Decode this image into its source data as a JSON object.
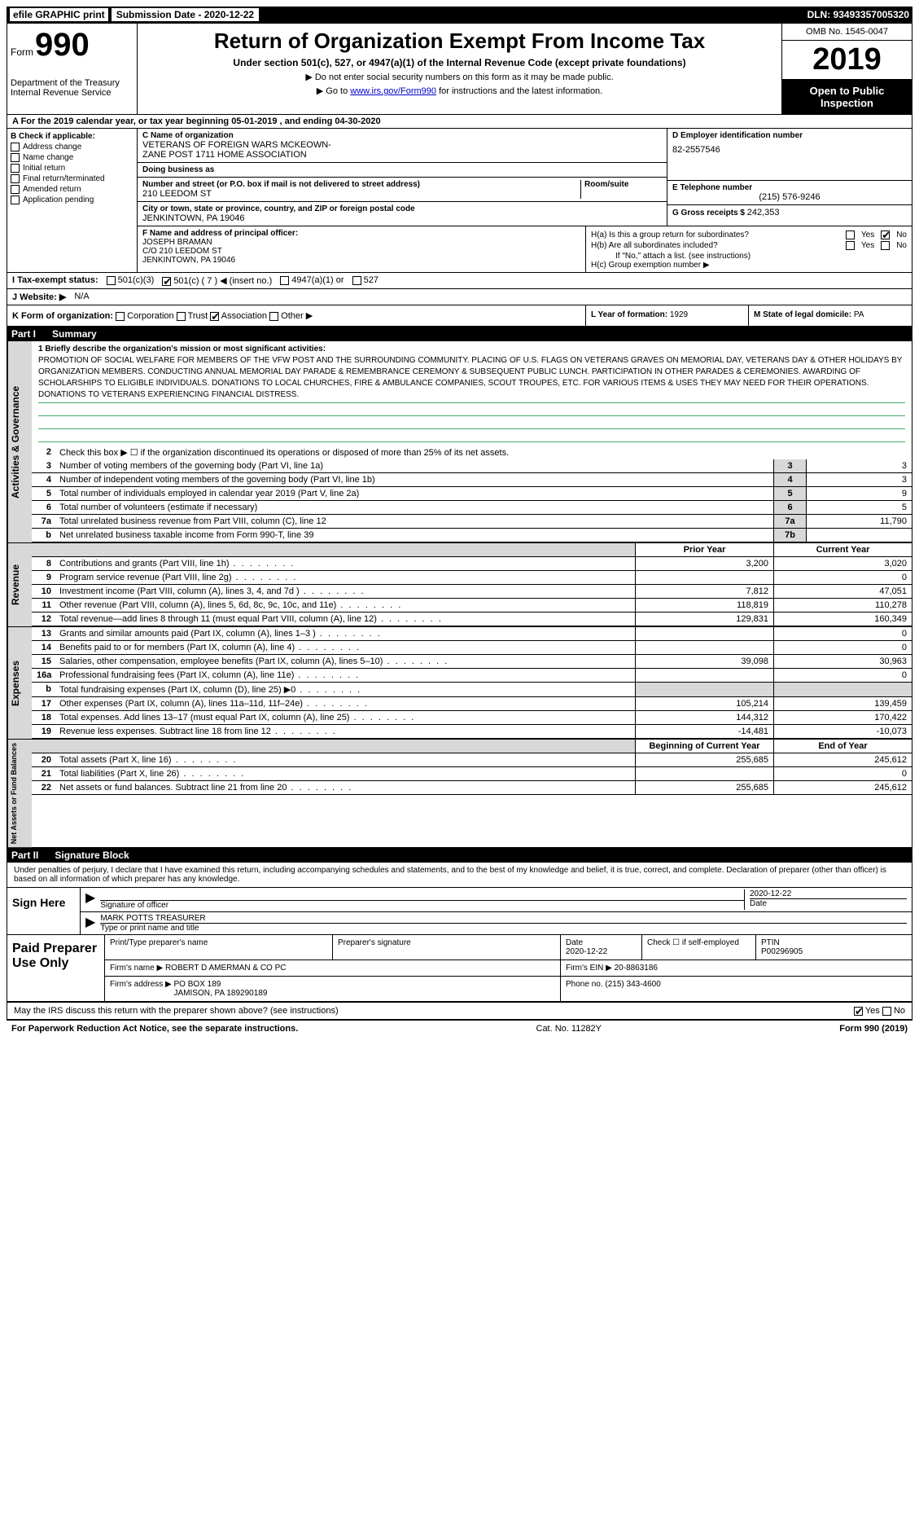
{
  "top": {
    "efile": "efile GRAPHIC print",
    "sub_label": "Submission Date - 2020-12-22",
    "dln": "DLN: 93493357005320"
  },
  "header": {
    "form_word": "Form",
    "form_num": "990",
    "dept": "Department of the Treasury\nInternal Revenue Service",
    "title": "Return of Organization Exempt From Income Tax",
    "sub1": "Under section 501(c), 527, or 4947(a)(1) of the Internal Revenue Code (except private foundations)",
    "sub2": "▶ Do not enter social security numbers on this form as it may be made public.",
    "sub3_pre": "▶ Go to ",
    "sub3_link": "www.irs.gov/Form990",
    "sub3_post": " for instructions and the latest information.",
    "omb": "OMB No. 1545-0047",
    "year": "2019",
    "open": "Open to Public Inspection"
  },
  "row_a": "A   For the 2019 calendar year, or tax year beginning 05-01-2019   , and ending 04-30-2020",
  "box_b": {
    "hd": "B Check if applicable:",
    "items": [
      "Address change",
      "Name change",
      "Initial return",
      "Final return/terminated",
      "Amended return",
      "Application pending"
    ]
  },
  "box_c": {
    "name_label": "C Name of organization",
    "name": "VETERANS OF FOREIGN WARS MCKEOWN-\nZANE POST 1711 HOME ASSOCIATION",
    "dba_label": "Doing business as",
    "dba": "",
    "street_label": "Number and street (or P.O. box if mail is not delivered to street address)",
    "street": "210 LEEDOM ST",
    "room_label": "Room/suite",
    "city_label": "City or town, state or province, country, and ZIP or foreign postal code",
    "city": "JENKINTOWN, PA  19046"
  },
  "box_d": {
    "label": "D Employer identification number",
    "ein": "82-2557546",
    "e_label": "E Telephone number",
    "phone": "(215) 576-9246",
    "g_label": "G Gross receipts $",
    "gross": "242,353"
  },
  "box_f": {
    "label": "F  Name and address of principal officer:",
    "name": "JOSEPH BRAMAN",
    "line2": "C/O 210 LEEDOM ST",
    "line3": "JENKINTOWN, PA  19046"
  },
  "box_h": {
    "ha": "H(a)  Is this a group return for subordinates?",
    "hb": "H(b)  Are all subordinates included?",
    "hb_note": "If \"No,\" attach a list. (see instructions)",
    "hc": "H(c)  Group exemption number ▶",
    "yes": "Yes",
    "no": "No"
  },
  "row_i": {
    "label": "I    Tax-exempt status:",
    "opt1": "501(c)(3)",
    "opt2": "501(c) ( 7 ) ◀ (insert no.)",
    "opt3": "4947(a)(1) or",
    "opt4": "527"
  },
  "row_j": {
    "label": "J   Website: ▶",
    "val": "N/A"
  },
  "row_k": {
    "label": "K Form of organization:",
    "opts": [
      "Corporation",
      "Trust",
      "Association",
      "Other ▶"
    ],
    "checked": 2
  },
  "row_l": {
    "label": "L Year of formation:",
    "val": "1929"
  },
  "row_m": {
    "label": "M State of legal domicile:",
    "val": "PA"
  },
  "part1": {
    "hd": "Part I",
    "title": "Summary",
    "side1": "Activities & Governance",
    "q1_label": "1   Briefly describe the organization's mission or most significant activities:",
    "mission": "PROMOTION OF SOCIAL WELFARE FOR MEMBERS OF THE VFW POST AND THE SURROUNDING COMMUNITY. PLACING OF U.S. FLAGS ON VETERANS GRAVES ON MEMORIAL DAY, VETERANS DAY & OTHER HOLIDAYS BY ORGANIZATION MEMBERS. CONDUCTING ANNUAL MEMORIAL DAY PARADE & REMEMBRANCE CEREMONY & SUBSEQUENT PUBLIC LUNCH. PARTICIPATION IN OTHER PARADES & CEREMONIES. AWARDING OF SCHOLARSHIPS TO ELIGIBLE INDIVIDUALS. DONATIONS TO LOCAL CHURCHES, FIRE & AMBULANCE COMPANIES, SCOUT TROUPES, ETC. FOR VARIOUS ITEMS & USES THEY MAY NEED FOR THEIR OPERATIONS. DONATIONS TO VETERANS EXPERIENCING FINANCIAL DISTRESS.",
    "q2": "Check this box ▶ ☐  if the organization discontinued its operations or disposed of more than 25% of its net assets.",
    "rows": [
      {
        "n": "3",
        "t": "Number of voting members of the governing body (Part VI, line 1a)",
        "b": "3",
        "v": "3"
      },
      {
        "n": "4",
        "t": "Number of independent voting members of the governing body (Part VI, line 1b)",
        "b": "4",
        "v": "3"
      },
      {
        "n": "5",
        "t": "Total number of individuals employed in calendar year 2019 (Part V, line 2a)",
        "b": "5",
        "v": "9"
      },
      {
        "n": "6",
        "t": "Total number of volunteers (estimate if necessary)",
        "b": "6",
        "v": "5"
      },
      {
        "n": "7a",
        "t": "Total unrelated business revenue from Part VIII, column (C), line 12",
        "b": "7a",
        "v": "11,790"
      },
      {
        "n": "b",
        "t": "Net unrelated business taxable income from Form 990-T, line 39",
        "b": "7b",
        "v": ""
      }
    ],
    "side2": "Revenue",
    "side3": "Expenses",
    "side4": "Net Assets or Fund Balances",
    "py": "Prior Year",
    "cy": "Current Year",
    "by": "Beginning of Current Year",
    "ey": "End of Year",
    "rev_rows": [
      {
        "n": "8",
        "t": "Contributions and grants (Part VIII, line 1h)",
        "py": "3,200",
        "cy": "3,020"
      },
      {
        "n": "9",
        "t": "Program service revenue (Part VIII, line 2g)",
        "py": "",
        "cy": "0"
      },
      {
        "n": "10",
        "t": "Investment income (Part VIII, column (A), lines 3, 4, and 7d )",
        "py": "7,812",
        "cy": "47,051"
      },
      {
        "n": "11",
        "t": "Other revenue (Part VIII, column (A), lines 5, 6d, 8c, 9c, 10c, and 11e)",
        "py": "118,819",
        "cy": "110,278"
      },
      {
        "n": "12",
        "t": "Total revenue—add lines 8 through 11 (must equal Part VIII, column (A), line 12)",
        "py": "129,831",
        "cy": "160,349"
      }
    ],
    "exp_rows": [
      {
        "n": "13",
        "t": "Grants and similar amounts paid (Part IX, column (A), lines 1–3 )",
        "py": "",
        "cy": "0"
      },
      {
        "n": "14",
        "t": "Benefits paid to or for members (Part IX, column (A), line 4)",
        "py": "",
        "cy": "0"
      },
      {
        "n": "15",
        "t": "Salaries, other compensation, employee benefits (Part IX, column (A), lines 5–10)",
        "py": "39,098",
        "cy": "30,963"
      },
      {
        "n": "16a",
        "t": "Professional fundraising fees (Part IX, column (A), line 11e)",
        "py": "",
        "cy": "0"
      },
      {
        "n": "b",
        "t": "Total fundraising expenses (Part IX, column (D), line 25) ▶0",
        "py": "shade",
        "cy": "shade"
      },
      {
        "n": "17",
        "t": "Other expenses (Part IX, column (A), lines 11a–11d, 11f–24e)",
        "py": "105,214",
        "cy": "139,459"
      },
      {
        "n": "18",
        "t": "Total expenses. Add lines 13–17 (must equal Part IX, column (A), line 25)",
        "py": "144,312",
        "cy": "170,422"
      },
      {
        "n": "19",
        "t": "Revenue less expenses. Subtract line 18 from line 12",
        "py": "-14,481",
        "cy": "-10,073"
      }
    ],
    "net_rows": [
      {
        "n": "20",
        "t": "Total assets (Part X, line 16)",
        "py": "255,685",
        "cy": "245,612"
      },
      {
        "n": "21",
        "t": "Total liabilities (Part X, line 26)",
        "py": "",
        "cy": "0"
      },
      {
        "n": "22",
        "t": "Net assets or fund balances. Subtract line 21 from line 20",
        "py": "255,685",
        "cy": "245,612"
      }
    ]
  },
  "part2": {
    "hd": "Part II",
    "title": "Signature Block",
    "intro": "Under penalties of perjury, I declare that I have examined this return, including accompanying schedules and statements, and to the best of my knowledge and belief, it is true, correct, and complete. Declaration of preparer (other than officer) is based on all information of which preparer has any knowledge.",
    "sign_here": "Sign Here",
    "sig_officer": "Signature of officer",
    "sig_date": "2020-12-22",
    "date_lbl": "Date",
    "sig_name": "MARK POTTS TREASURER",
    "sig_name_lbl": "Type or print name and title",
    "paid": "Paid Preparer Use Only",
    "prep_hd": [
      "Print/Type preparer's name",
      "Preparer's signature",
      "Date",
      "",
      "PTIN"
    ],
    "prep_r1": [
      "",
      "",
      "2020-12-22",
      "Check ☐ if self-employed",
      "P00296905"
    ],
    "firm_name_lbl": "Firm's name    ▶",
    "firm_name": "ROBERT D AMERMAN & CO PC",
    "firm_ein_lbl": "Firm's EIN ▶",
    "firm_ein": "20-8863186",
    "firm_addr_lbl": "Firm's address ▶",
    "firm_addr": "PO BOX 189\nJAMISON, PA  189290189",
    "phone_lbl": "Phone no.",
    "phone": "(215) 343-4600",
    "discuss": "May the IRS discuss this return with the preparer shown above? (see instructions)",
    "d_yes": "Yes",
    "d_no": "No"
  },
  "footer": {
    "l": "For Paperwork Reduction Act Notice, see the separate instructions.",
    "c": "Cat. No. 11282Y",
    "r": "Form 990 (2019)"
  }
}
